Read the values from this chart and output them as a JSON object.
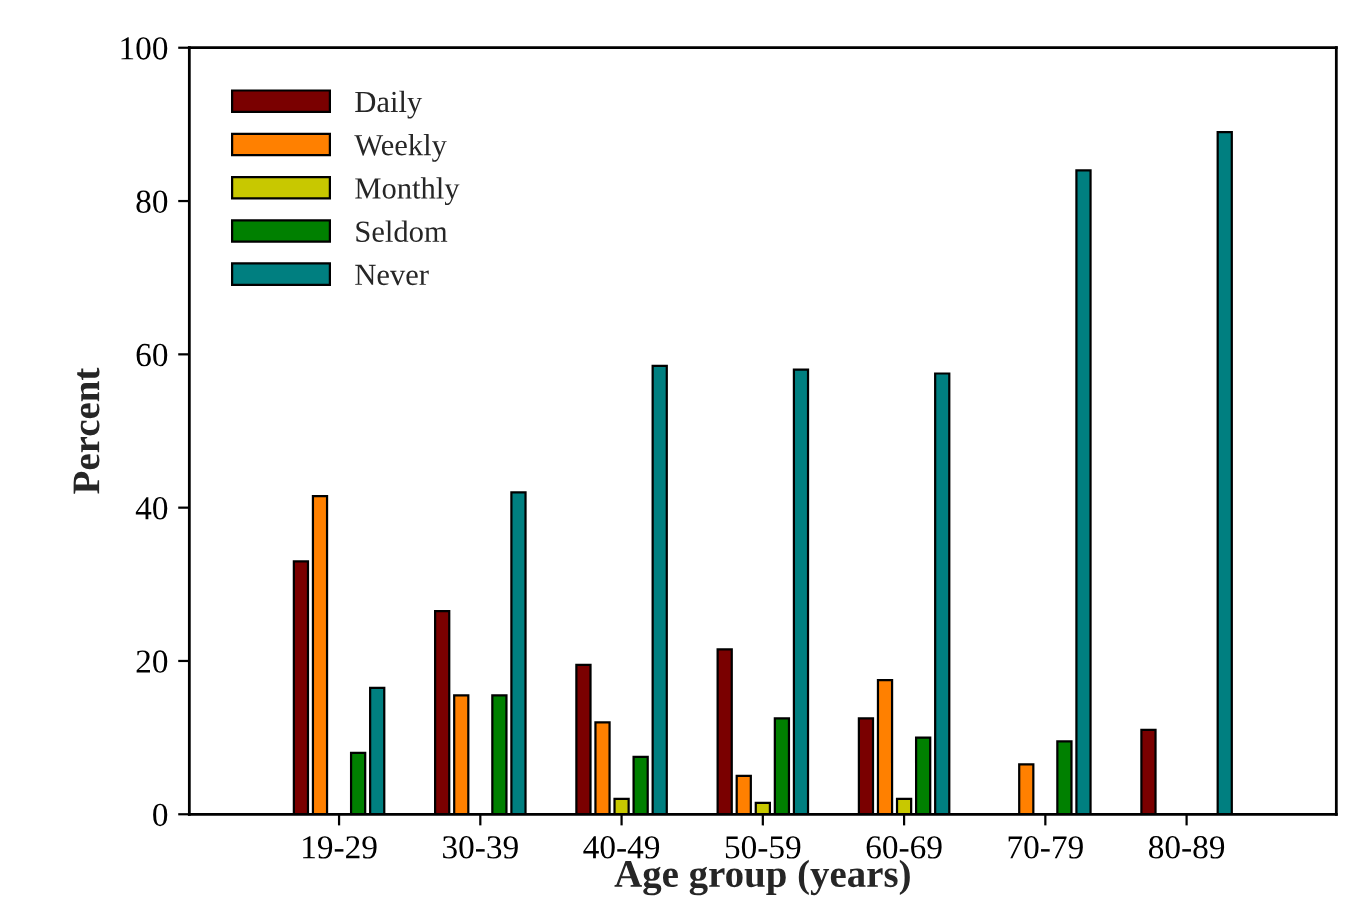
{
  "chart_data": {
    "type": "bar",
    "xlabel": "Age group (years)",
    "ylabel": "Percent",
    "categories": [
      "19-29",
      "30-39",
      "40-49",
      "50-59",
      "60-69",
      "70-79",
      "80-89"
    ],
    "series": [
      {
        "name": "Daily",
        "color": "#7a0000",
        "values": [
          33,
          26.5,
          19.5,
          21.5,
          12.5,
          null,
          11
        ]
      },
      {
        "name": "Weekly",
        "color": "#ff8000",
        "values": [
          41.5,
          15.5,
          12,
          5,
          17.5,
          6.5,
          null
        ]
      },
      {
        "name": "Monthly",
        "color": "#c8c800",
        "values": [
          null,
          null,
          2,
          1.5,
          2,
          null,
          null
        ]
      },
      {
        "name": "Seldom",
        "color": "#008000",
        "values": [
          8,
          15.5,
          7.5,
          12.5,
          10,
          9.5,
          null
        ]
      },
      {
        "name": "Never",
        "color": "#007f80",
        "values": [
          16.5,
          42,
          58.5,
          58,
          57.5,
          84,
          89
        ]
      }
    ],
    "ylim": [
      0,
      100
    ],
    "yticks": [
      0,
      20,
      40,
      60,
      80,
      100
    ],
    "grid": false,
    "legend": "top left"
  }
}
